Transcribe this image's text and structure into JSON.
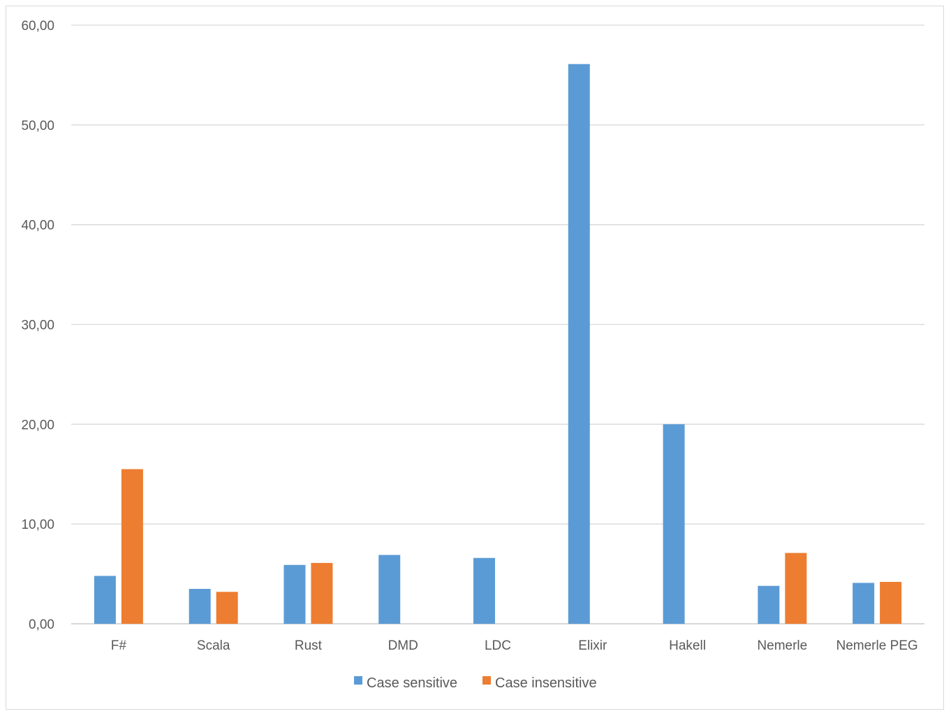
{
  "chart_data": {
    "type": "bar",
    "categories": [
      "F#",
      "Scala",
      "Rust",
      "DMD",
      "LDC",
      "Elixir",
      "Hakell",
      "Nemerle",
      "Nemerle PEG"
    ],
    "series": [
      {
        "name": "Case sensitive",
        "color": "#5b9bd5",
        "values": [
          4.8,
          3.5,
          5.9,
          6.9,
          6.6,
          56.1,
          20.0,
          3.8,
          4.1
        ]
      },
      {
        "name": "Case insensitive",
        "color": "#ed7d31",
        "values": [
          15.5,
          3.2,
          6.1,
          null,
          null,
          null,
          null,
          7.1,
          4.2
        ]
      }
    ],
    "ylim": [
      0,
      60
    ],
    "yticks": [
      "0,00",
      "10,00",
      "20,00",
      "30,00",
      "40,00",
      "50,00",
      "60,00"
    ],
    "grid": true,
    "legend": "bottom"
  }
}
